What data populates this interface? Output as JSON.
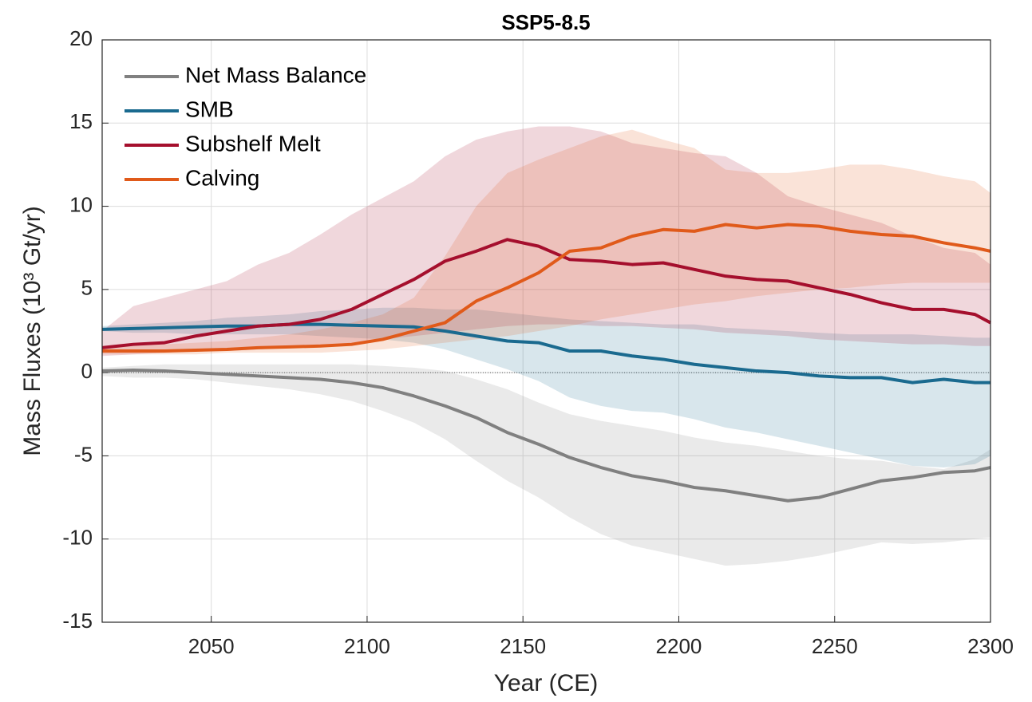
{
  "chart_data": {
    "type": "line",
    "title": "SSP5-8.5",
    "x_label": "Year (CE)",
    "y_label": "Mass Fluxes (10³ Gt/yr)",
    "x": [
      2015,
      2025,
      2035,
      2045,
      2055,
      2065,
      2075,
      2085,
      2095,
      2105,
      2115,
      2125,
      2135,
      2145,
      2155,
      2165,
      2175,
      2185,
      2195,
      2205,
      2215,
      2225,
      2235,
      2245,
      2255,
      2265,
      2275,
      2285,
      2295,
      2300
    ],
    "series": [
      {
        "name": "Net Mass Balance",
        "color": "#808080",
        "values": [
          0.1,
          0.15,
          0.1,
          0,
          -0.1,
          -0.2,
          -0.3,
          -0.4,
          -0.6,
          -0.9,
          -1.4,
          -2.0,
          -2.7,
          -3.6,
          -4.3,
          -5.1,
          -5.7,
          -6.2,
          -6.5,
          -6.9,
          -7.1,
          -7.4,
          -7.7,
          -7.5,
          -7.0,
          -6.5,
          -6.3,
          -6.0,
          -5.9,
          -5.7
        ],
        "lower": [
          -0.2,
          -0.3,
          -0.3,
          -0.4,
          -0.6,
          -0.8,
          -1.0,
          -1.3,
          -1.7,
          -2.3,
          -3.0,
          -4.0,
          -5.3,
          -6.5,
          -7.5,
          -8.7,
          -9.7,
          -10.4,
          -10.8,
          -11.2,
          -11.6,
          -11.5,
          -11.3,
          -11.0,
          -10.6,
          -10.2,
          -10.3,
          -10.2,
          -10.0,
          -9.9
        ],
        "upper": [
          0.3,
          0.4,
          0.5,
          0.5,
          0.5,
          0.5,
          0.5,
          0.5,
          0.5,
          0.4,
          0.3,
          0.1,
          -0.4,
          -1.0,
          -1.8,
          -2.5,
          -2.9,
          -3.2,
          -3.5,
          -3.9,
          -4.2,
          -4.4,
          -4.7,
          -5.0,
          -5.2,
          -5.3,
          -5.6,
          -5.8,
          -5.2,
          -4.6
        ]
      },
      {
        "name": "SMB",
        "color": "#1a6a8f",
        "values": [
          2.6,
          2.65,
          2.7,
          2.75,
          2.8,
          2.8,
          2.9,
          2.9,
          2.85,
          2.8,
          2.75,
          2.5,
          2.2,
          1.9,
          1.8,
          1.3,
          1.3,
          1.0,
          0.8,
          0.5,
          0.3,
          0.1,
          0,
          -0.2,
          -0.3,
          -0.3,
          -0.6,
          -0.4,
          -0.6,
          -0.6
        ],
        "lower": [
          2.5,
          2.4,
          2.4,
          2.3,
          2.3,
          2.3,
          2.3,
          2.2,
          2.1,
          2.0,
          1.8,
          1.4,
          0.8,
          0.2,
          -0.5,
          -1.5,
          -2.0,
          -2.3,
          -2.4,
          -2.8,
          -3.3,
          -3.6,
          -4.0,
          -4.4,
          -4.8,
          -5.2,
          -5.6,
          -5.7,
          -5.5,
          -5.0
        ],
        "upper": [
          2.8,
          2.9,
          3.0,
          3.1,
          3.3,
          3.4,
          3.5,
          3.7,
          3.8,
          3.9,
          3.9,
          3.8,
          3.8,
          3.6,
          3.4,
          3.2,
          3.1,
          3.0,
          2.9,
          2.9,
          2.7,
          2.6,
          2.5,
          2.4,
          2.3,
          2.3,
          2.3,
          2.2,
          2.1,
          2.1
        ]
      },
      {
        "name": "Subshelf Melt",
        "color": "#a50f2d",
        "values": [
          1.5,
          1.7,
          1.8,
          2.2,
          2.5,
          2.8,
          2.9,
          3.2,
          3.8,
          4.7,
          5.6,
          6.7,
          7.3,
          8.0,
          7.6,
          6.8,
          6.7,
          6.5,
          6.6,
          6.2,
          5.8,
          5.6,
          5.5,
          5.1,
          4.7,
          4.2,
          3.8,
          3.8,
          3.5,
          3.0
        ],
        "lower": [
          1.0,
          1.1,
          1.2,
          1.3,
          1.3,
          1.4,
          1.5,
          1.6,
          1.8,
          2.0,
          2.2,
          2.4,
          2.6,
          2.8,
          2.9,
          2.9,
          2.8,
          2.8,
          2.7,
          2.6,
          2.4,
          2.3,
          2.2,
          2.0,
          1.9,
          1.8,
          1.7,
          1.7,
          1.6,
          1.6
        ],
        "upper": [
          2.5,
          4.0,
          4.5,
          5.0,
          5.5,
          6.5,
          7.2,
          8.3,
          9.5,
          10.5,
          11.5,
          13.0,
          14.0,
          14.5,
          14.8,
          14.8,
          14.5,
          13.8,
          13.5,
          13.2,
          13.0,
          12.0,
          10.6,
          10.0,
          9.5,
          9.0,
          8.2,
          7.5,
          7.2,
          6.5
        ]
      },
      {
        "name": "Calving",
        "color": "#e05a1a",
        "values": [
          1.3,
          1.3,
          1.3,
          1.35,
          1.4,
          1.5,
          1.55,
          1.6,
          1.7,
          2.0,
          2.5,
          3.0,
          4.3,
          5.1,
          6.0,
          7.3,
          7.5,
          8.2,
          8.6,
          8.5,
          8.9,
          8.7,
          8.9,
          8.8,
          8.5,
          8.3,
          8.2,
          7.8,
          7.5,
          7.3
        ],
        "lower": [
          1.1,
          1.1,
          1.1,
          1.1,
          1.2,
          1.2,
          1.2,
          1.2,
          1.3,
          1.4,
          1.6,
          1.8,
          2.0,
          2.2,
          2.5,
          2.8,
          3.2,
          3.5,
          3.8,
          4.1,
          4.3,
          4.6,
          4.8,
          5.0,
          5.1,
          5.3,
          5.4,
          5.4,
          5.4,
          5.4
        ],
        "upper": [
          1.5,
          1.6,
          1.7,
          1.8,
          1.9,
          2.1,
          2.3,
          2.6,
          3.0,
          3.5,
          4.5,
          7.0,
          10.0,
          12.0,
          12.8,
          13.5,
          14.2,
          14.6,
          14.0,
          13.5,
          12.2,
          12.0,
          12.0,
          12.2,
          12.5,
          12.5,
          12.2,
          11.8,
          11.5,
          10.8
        ]
      }
    ],
    "xlim": [
      2015,
      2300
    ],
    "xticks": [
      2050,
      2100,
      2150,
      2200,
      2250,
      2300
    ],
    "ylim": [
      -15,
      20
    ],
    "yticks": [
      -15,
      -10,
      -5,
      0,
      5,
      10,
      15,
      20
    ],
    "grid": true,
    "legend": "upper left"
  }
}
